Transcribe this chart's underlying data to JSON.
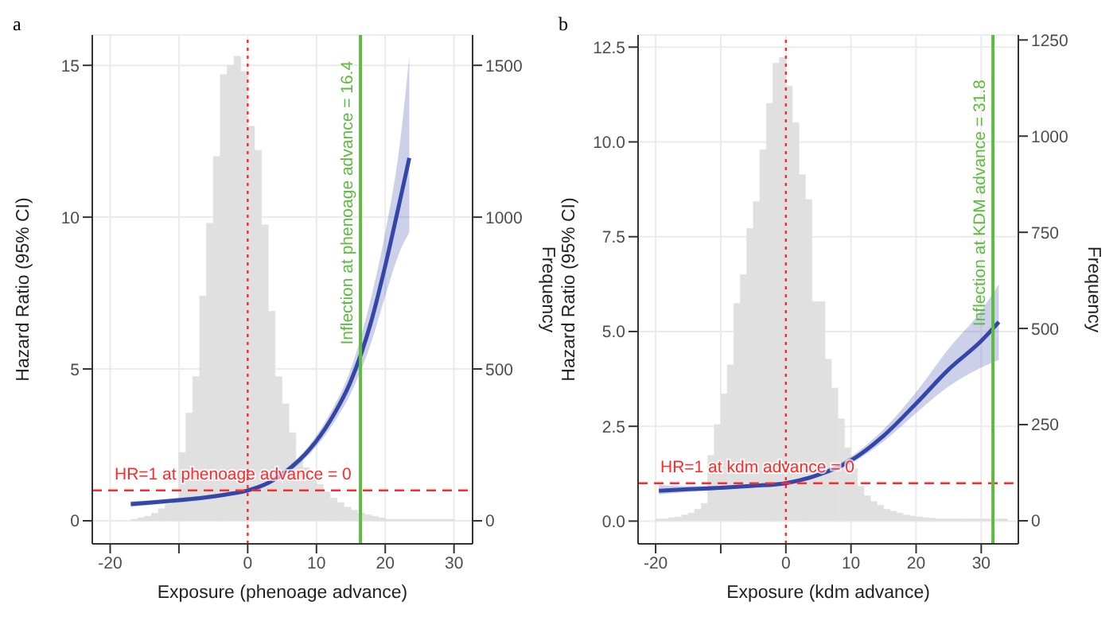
{
  "chart_data": [
    {
      "type": "line",
      "title": "a",
      "xlabel": "Exposure (phenoage advance)",
      "ylabel": "Hazard Ratio (95% CI)",
      "y2label": "Frequency",
      "xlim": [
        -22.6,
        32.7
      ],
      "xticks": [
        -20,
        {
          "value": -10,
          "label": null
        },
        0,
        10,
        20,
        30
      ],
      "ylim": [
        -0.76,
        16
      ],
      "yticks": [
        0,
        5,
        10,
        15
      ],
      "y2lim": [
        -76,
        1600
      ],
      "y2ticks": [
        0,
        500,
        1000,
        1500
      ],
      "grid": true,
      "series": [
        {
          "type": "histogram",
          "axis": "y2",
          "color": "#dfe0df",
          "bins": [
            -17,
            -16,
            -15,
            -14,
            -13,
            -12,
            -11,
            -10,
            -9,
            -8,
            -7,
            -6,
            -5,
            -4,
            -3,
            -2,
            -1,
            0,
            1,
            2,
            3,
            4,
            5,
            6,
            7,
            8,
            9,
            10,
            11,
            12,
            13,
            14,
            15,
            16,
            17,
            18,
            19,
            20,
            21,
            22,
            23,
            24,
            25,
            26,
            27,
            28,
            29,
            30
          ],
          "values": [
            5,
            10,
            15,
            25,
            40,
            55,
            70,
            225,
            355,
            475,
            740,
            980,
            1200,
            1470,
            1500,
            1530,
            1480,
            1300,
            1220,
            975,
            690,
            475,
            385,
            290,
            200,
            175,
            145,
            120,
            95,
            75,
            60,
            45,
            35,
            25,
            20,
            15,
            10,
            5,
            5,
            5,
            5,
            5,
            5,
            5,
            5,
            5,
            5
          ]
        },
        {
          "type": "line",
          "color": "#3447a8",
          "x": [
            -17,
            -14,
            -10,
            -6,
            -3,
            0,
            3,
            6,
            9,
            12,
            15,
            18,
            20,
            22,
            23.5
          ],
          "values": [
            0.55,
            0.6,
            0.68,
            0.77,
            0.87,
            1.0,
            1.25,
            1.7,
            2.35,
            3.3,
            4.6,
            6.6,
            8.4,
            10.4,
            11.95
          ],
          "lower": [
            0.45,
            0.52,
            0.6,
            0.7,
            0.82,
            0.97,
            1.2,
            1.6,
            2.2,
            3.05,
            4.2,
            5.9,
            7.4,
            8.8,
            9.5
          ],
          "upper": [
            0.65,
            0.68,
            0.75,
            0.84,
            0.92,
            1.03,
            1.3,
            1.8,
            2.5,
            3.55,
            5.0,
            7.4,
            9.5,
            12.2,
            15.3
          ]
        }
      ],
      "ref_lines": [
        {
          "axis": "y",
          "value": 1,
          "label": "HR=1 at phenoage advance = 0",
          "color": "#ff2a2a",
          "line_style": "dashed"
        },
        {
          "axis": "x",
          "value": 0,
          "label": null,
          "color": "#ff2a2a",
          "line_style": "dotted"
        },
        {
          "axis": "x",
          "value": 16.4,
          "label": "Inflection at phenoage advance = 16.4",
          "color": "#5dbb3f",
          "line_style": "solid"
        }
      ]
    },
    {
      "type": "line",
      "title": "b",
      "xlabel": "Exposure (kdm advance)",
      "ylabel": "Hazard Ratio (95% CI)",
      "y2label": "Frequency",
      "xlim": [
        -22.7,
        35.7
      ],
      "xticks": [
        -20,
        {
          "value": -10,
          "label": null
        },
        0,
        10,
        20,
        30
      ],
      "ylim": [
        -0.6,
        12.82
      ],
      "yticks": [
        {
          "value": 0,
          "label": "0.0"
        },
        2.5,
        {
          "value": 5,
          "label": "5.0"
        },
        7.5,
        {
          "value": 10,
          "label": "10.0"
        },
        12.5
      ],
      "y2lim": [
        -60,
        1263
      ],
      "y2ticks": [
        0,
        250,
        500,
        750,
        1000,
        1250
      ],
      "grid": true,
      "series": [
        {
          "type": "histogram",
          "axis": "y2",
          "color": "#dfe0df",
          "bins": [
            -20,
            -19,
            -18,
            -17,
            -16,
            -15,
            -14,
            -13,
            -12,
            -11,
            -10,
            -9,
            -8,
            -7,
            -6,
            -5,
            -4,
            -3,
            -2,
            -1,
            0,
            1,
            2,
            3,
            4,
            5,
            6,
            7,
            8,
            9,
            10,
            11,
            12,
            13,
            14,
            15,
            16,
            17,
            18,
            19,
            20,
            21,
            22,
            23,
            24,
            25,
            26,
            27,
            28,
            29,
            30,
            31,
            32,
            33,
            34
          ],
          "values": [
            5,
            5,
            8,
            10,
            15,
            20,
            30,
            45,
            170,
            250,
            330,
            405,
            565,
            640,
            760,
            830,
            965,
            1085,
            1190,
            1205,
            1130,
            1035,
            900,
            835,
            570,
            570,
            420,
            345,
            265,
            190,
            135,
            90,
            65,
            50,
            40,
            30,
            25,
            20,
            15,
            12,
            10,
            8,
            7,
            5,
            5,
            5,
            5,
            5,
            5,
            5,
            5,
            5,
            5,
            5
          ]
        },
        {
          "type": "line",
          "color": "#3447a8",
          "x": [
            -19.5,
            -15,
            -10,
            -5,
            0,
            5,
            10,
            15,
            20,
            25,
            30,
            32.7
          ],
          "values": [
            0.8,
            0.84,
            0.88,
            0.93,
            1.0,
            1.22,
            1.6,
            2.25,
            3.1,
            4.0,
            4.75,
            5.25
          ],
          "lower": [
            0.7,
            0.77,
            0.83,
            0.9,
            0.97,
            1.17,
            1.52,
            2.1,
            2.85,
            3.55,
            4.05,
            4.25
          ],
          "upper": [
            0.95,
            0.92,
            0.93,
            0.96,
            1.03,
            1.28,
            1.7,
            2.42,
            3.4,
            4.55,
            5.55,
            6.25
          ]
        }
      ],
      "ref_lines": [
        {
          "axis": "y",
          "value": 1,
          "label": "HR=1 at kdm advance = 0",
          "color": "#ff2a2a",
          "line_style": "dashed"
        },
        {
          "axis": "x",
          "value": 0,
          "label": null,
          "color": "#ff2a2a",
          "line_style": "dotted"
        },
        {
          "axis": "x",
          "value": 31.8,
          "label": "Inflection at KDM advance = 31.8",
          "color": "#5dbb3f",
          "line_style": "solid"
        }
      ]
    }
  ]
}
